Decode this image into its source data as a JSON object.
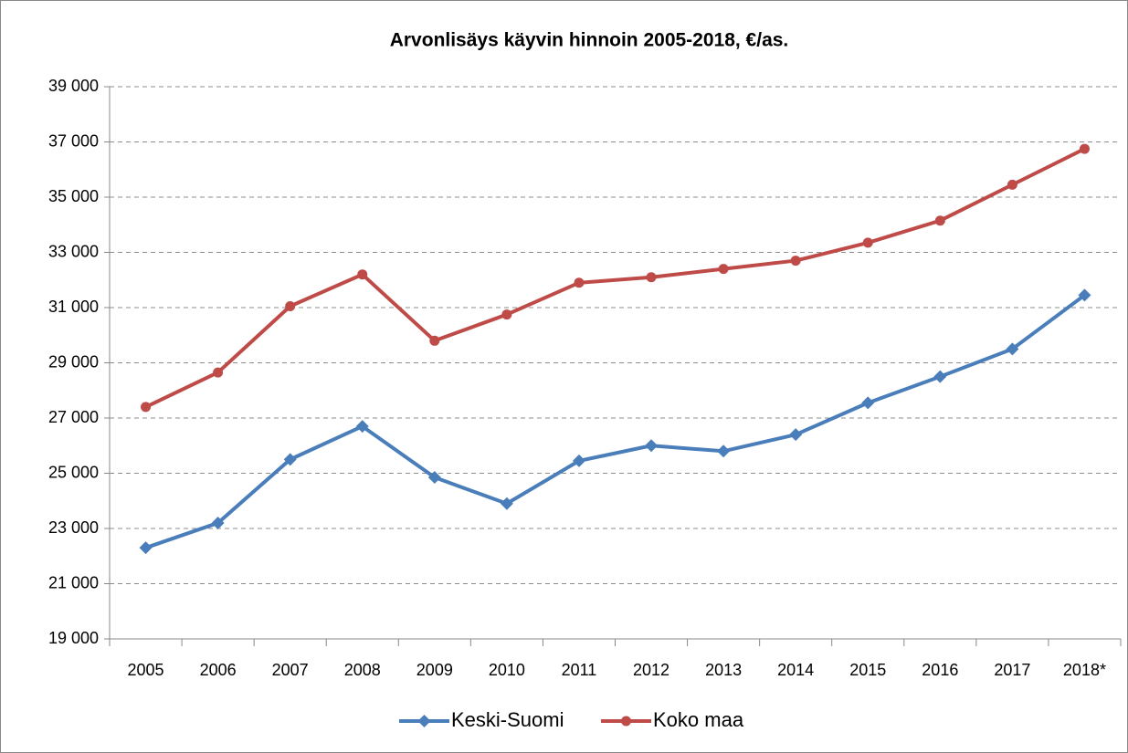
{
  "chart_data": {
    "type": "line",
    "title": "Arvonlisäys käyvin hinnoin 2005-2018, €/as.",
    "categories": [
      "2005",
      "2006",
      "2007",
      "2008",
      "2009",
      "2010",
      "2011",
      "2012",
      "2013",
      "2014",
      "2015",
      "2016",
      "2017",
      "2018*"
    ],
    "series": [
      {
        "name": "Keski-Suomi",
        "color": "#4a7ebb",
        "marker": "diamond",
        "values": [
          22300,
          23200,
          25500,
          26700,
          24850,
          23900,
          25450,
          26000,
          25800,
          26400,
          27550,
          28500,
          29500,
          31450
        ]
      },
      {
        "name": "Koko maa",
        "color": "#be4b48",
        "marker": "circle",
        "values": [
          27400,
          28650,
          31050,
          32200,
          29800,
          30750,
          31900,
          32100,
          32400,
          32700,
          33350,
          34150,
          35450,
          36750
        ]
      }
    ],
    "ylim": [
      19000,
      39000
    ],
    "yticks": [
      {
        "value": 19000,
        "label": "19 000"
      },
      {
        "value": 21000,
        "label": "21 000"
      },
      {
        "value": 23000,
        "label": "23 000"
      },
      {
        "value": 25000,
        "label": "25 000"
      },
      {
        "value": 27000,
        "label": "27 000"
      },
      {
        "value": 29000,
        "label": "29 000"
      },
      {
        "value": 31000,
        "label": "31 000"
      },
      {
        "value": 33000,
        "label": "33 000"
      },
      {
        "value": 35000,
        "label": "35 000"
      },
      {
        "value": 37000,
        "label": "37 000"
      },
      {
        "value": 39000,
        "label": "39 000"
      }
    ],
    "grid": true,
    "legend": "bottom"
  }
}
